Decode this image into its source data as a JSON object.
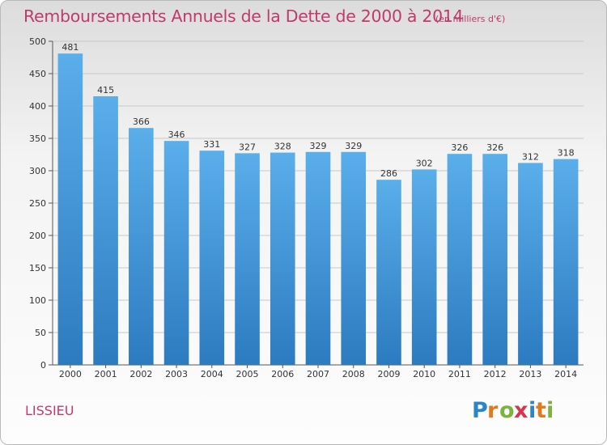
{
  "chart_data": {
    "type": "bar",
    "title": "Remboursements Annuels de la Dette de 2000 à 2014",
    "subtitle": "(en milliers d'€)",
    "xlabel": "",
    "ylabel": "",
    "categories": [
      "2000",
      "2001",
      "2002",
      "2003",
      "2004",
      "2005",
      "2006",
      "2007",
      "2008",
      "2009",
      "2010",
      "2011",
      "2012",
      "2013",
      "2014"
    ],
    "values": [
      481,
      415,
      366,
      346,
      331,
      327,
      328,
      329,
      329,
      286,
      302,
      326,
      326,
      312,
      318
    ],
    "ylim": [
      0,
      500
    ],
    "yticks": [
      0,
      50,
      100,
      150,
      200,
      250,
      300,
      350,
      400,
      450,
      500
    ],
    "grid": true,
    "legend": "none",
    "colors": {
      "bar_top": "#5aaeea",
      "bar_bottom": "#2c7bc0",
      "grid": "#c8c8c8"
    }
  },
  "footer": {
    "commune": "LISSIEU",
    "brand": "Proxiti"
  }
}
